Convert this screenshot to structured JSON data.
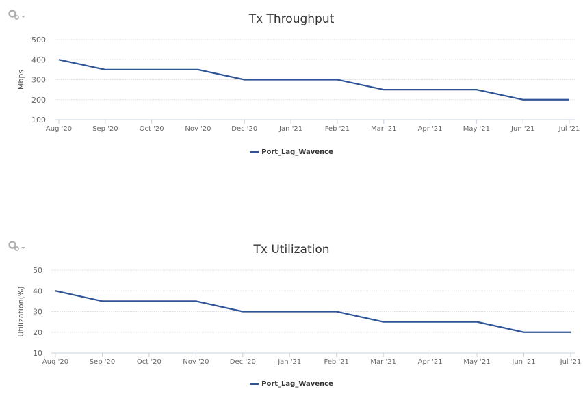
{
  "colors": {
    "series": "#2f5597",
    "grid": "#e3e3e3",
    "axis_text": "#666666",
    "gear": "#b0b0b0"
  },
  "charts": [
    {
      "title": "Tx Throughput",
      "ylabel": "Mbps",
      "legend": "Port_Lag_Wavence",
      "gear_icon": "gear-menu-icon"
    },
    {
      "title": "Tx Utilization",
      "ylabel": "Utilization(%)",
      "legend": "Port_Lag_Wavence",
      "gear_icon": "gear-menu-icon"
    }
  ],
  "chart_data": [
    {
      "type": "line",
      "title": "Tx Throughput",
      "xlabel": "",
      "ylabel": "Mbps",
      "categories": [
        "Aug '20",
        "Sep '20",
        "Oct '20",
        "Nov '20",
        "Dec '20",
        "Jan '21",
        "Feb '21",
        "Mar '21",
        "Apr '21",
        "May '21",
        "Jun '21",
        "Jul '21"
      ],
      "series": [
        {
          "name": "Port_Lag_Wavence",
          "values": [
            400,
            350,
            350,
            350,
            300,
            300,
            300,
            250,
            250,
            250,
            200,
            200
          ]
        }
      ],
      "yticks": [
        100,
        200,
        300,
        400,
        500
      ],
      "ylim": [
        100,
        500
      ],
      "grid": true,
      "legend_position": "bottom"
    },
    {
      "type": "line",
      "title": "Tx Utilization",
      "xlabel": "",
      "ylabel": "Utilization(%)",
      "categories": [
        "Aug '20",
        "Sep '20",
        "Oct '20",
        "Nov '20",
        "Dec '20",
        "Jan '21",
        "Feb '21",
        "Mar '21",
        "Apr '21",
        "May '21",
        "Jun '21",
        "Jul '21"
      ],
      "series": [
        {
          "name": "Port_Lag_Wavence",
          "values": [
            40,
            35,
            35,
            35,
            30,
            30,
            30,
            25,
            25,
            25,
            20,
            20
          ]
        }
      ],
      "yticks": [
        10,
        20,
        30,
        40,
        50
      ],
      "ylim": [
        10,
        50
      ],
      "grid": true,
      "legend_position": "bottom"
    }
  ]
}
